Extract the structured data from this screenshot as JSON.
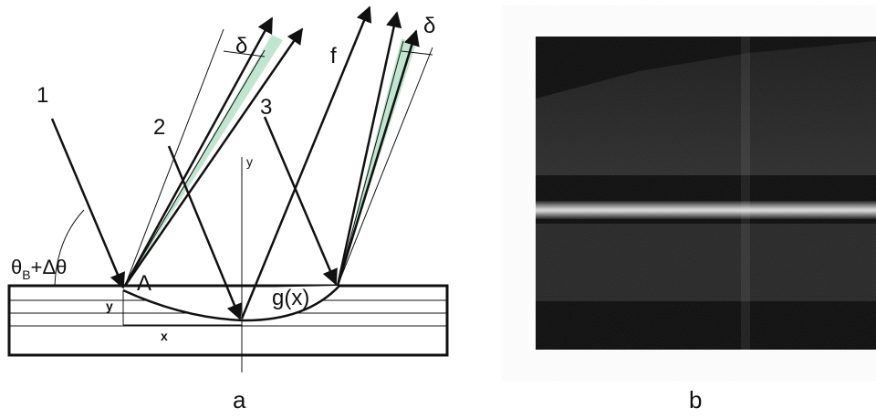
{
  "panel_a": {
    "caption": "a",
    "ray_labels": [
      "1",
      "2",
      "3",
      "f"
    ],
    "point_label": "A",
    "curve_label": "g(x)",
    "angle_label_theta": "θ",
    "angle_label_sub": "B",
    "angle_label_rest": "+Δθ",
    "delta_left": "δ",
    "delta_right": "δ",
    "axis_y": "y",
    "dim_x": "x",
    "dim_y": "y"
  },
  "panel_b": {
    "caption": "b"
  },
  "colors": {
    "beam_fill": "#bfe6cf",
    "line": "#111111",
    "image_bg": "#0b0b0b"
  }
}
